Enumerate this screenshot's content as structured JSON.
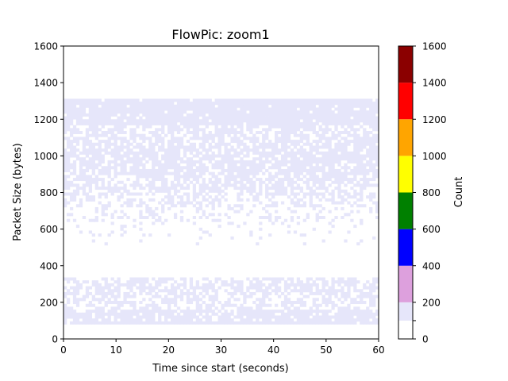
{
  "chart_data": {
    "type": "heatmap",
    "title": "FlowPic: zoom1",
    "xlabel": "Time since start (seconds)",
    "ylabel": "Packet Size (bytes)",
    "xlim": [
      0,
      60
    ],
    "ylim": [
      0,
      1600
    ],
    "xticks": [
      "0",
      "10",
      "20",
      "30",
      "40",
      "50",
      "60"
    ],
    "yticks": [
      "0",
      "200",
      "400",
      "600",
      "800",
      "1000",
      "1200",
      "1400",
      "1600"
    ],
    "grid": false,
    "colorbar": {
      "label": "Count",
      "ticks": [
        "0",
        "200",
        "400",
        "600",
        "800",
        "1000",
        "1200",
        "1400",
        "1600"
      ],
      "bins": [
        {
          "range": [
            0,
            100
          ],
          "color": "#ffffff"
        },
        {
          "range": [
            100,
            200
          ],
          "color": "#e6e6fa"
        },
        {
          "range": [
            200,
            400
          ],
          "color": "#dda0dd"
        },
        {
          "range": [
            400,
            600
          ],
          "color": "#0000ff"
        },
        {
          "range": [
            600,
            800
          ],
          "color": "#008000"
        },
        {
          "range": [
            800,
            1000
          ],
          "color": "#ffff00"
        },
        {
          "range": [
            1000,
            1200
          ],
          "color": "#ffa500"
        },
        {
          "range": [
            1200,
            1400
          ],
          "color": "#ff0000"
        },
        {
          "range": [
            1400,
            1600
          ],
          "color": "#8b0000"
        }
      ]
    },
    "cells": {
      "x_bin_size_seconds": 0.6,
      "y_bin_size_bytes": 16,
      "occupied_color": "#e6e6fa",
      "bands": [
        {
          "y": [
            1168,
            1312
          ],
          "density": 0.93
        },
        {
          "y": [
            1104,
            1168
          ],
          "density": 0.62
        },
        {
          "y": [
            896,
            1104
          ],
          "density": 0.78
        },
        {
          "y": [
            784,
            896
          ],
          "density": 0.62
        },
        {
          "y": [
            720,
            784
          ],
          "density": 0.45
        },
        {
          "y": [
            640,
            720
          ],
          "density": 0.22
        },
        {
          "y": [
            560,
            640
          ],
          "density": 0.08
        },
        {
          "y": [
            512,
            560
          ],
          "density": 0.04
        },
        {
          "y": [
            304,
            336
          ],
          "density": 0.55
        },
        {
          "y": [
            224,
            304
          ],
          "density": 0.6
        },
        {
          "y": [
            160,
            224
          ],
          "density": 0.5
        },
        {
          "y": [
            96,
            160
          ],
          "density": 0.85
        },
        {
          "y": [
            80,
            96
          ],
          "density": 0.95
        }
      ]
    }
  }
}
